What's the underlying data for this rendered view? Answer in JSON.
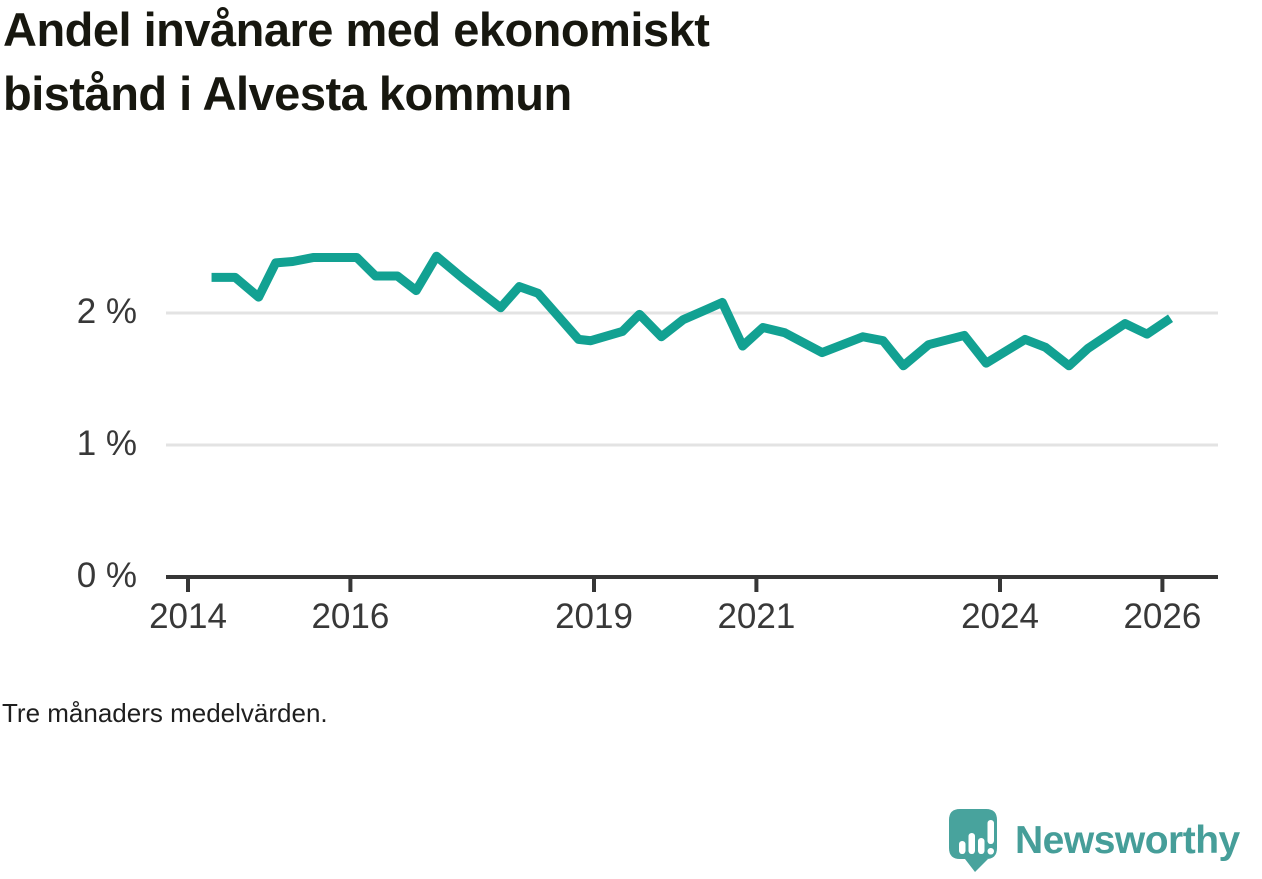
{
  "page": {
    "title_lines": [
      "Andel invånare med ekonomiskt",
      "bistånd i Alvesta kommun"
    ],
    "note": "Tre månaders medelvärden.",
    "logo_text": "Newsworthy"
  },
  "colors": {
    "line": "#12a192",
    "grid": "#e3e3e3",
    "axis": "#363636",
    "logo_bubble": "#48a39d",
    "logo_text": "#469e99"
  },
  "chart_data": {
    "type": "line",
    "title": "Andel invånare med ekonomiskt bistånd i Alvesta kommun",
    "note": "Tre månaders medelvärden.",
    "unit": "%",
    "xlabel": "",
    "ylabel": "",
    "x_range": [
      2013.73,
      2026.68
    ],
    "y_range": [
      0,
      2.6
    ],
    "grid": "horizontal",
    "legend": "none",
    "xticks": [
      {
        "value": 2014,
        "label": "2014"
      },
      {
        "value": 2016,
        "label": "2016"
      },
      {
        "value": 2019,
        "label": "2019"
      },
      {
        "value": 2021,
        "label": "2021"
      },
      {
        "value": 2024,
        "label": "2024"
      },
      {
        "value": 2026,
        "label": "2026"
      }
    ],
    "yticks": [
      {
        "value": 0,
        "label": "0 %"
      },
      {
        "value": 1,
        "label": "1 %"
      },
      {
        "value": 2,
        "label": "2 %"
      }
    ],
    "series": [
      {
        "name": "Andel invånare med ekonomiskt bistånd, Alvesta kommun",
        "points": [
          [
            2014.29,
            2.27
          ],
          [
            2014.58,
            2.27
          ],
          [
            2014.87,
            2.12
          ],
          [
            2015.08,
            2.38
          ],
          [
            2015.29,
            2.39
          ],
          [
            2015.54,
            2.42
          ],
          [
            2016.08,
            2.42
          ],
          [
            2016.31,
            2.28
          ],
          [
            2016.58,
            2.28
          ],
          [
            2016.81,
            2.17
          ],
          [
            2017.06,
            2.43
          ],
          [
            2017.39,
            2.26
          ],
          [
            2017.62,
            2.15
          ],
          [
            2017.85,
            2.04
          ],
          [
            2018.08,
            2.2
          ],
          [
            2018.31,
            2.15
          ],
          [
            2018.81,
            1.8
          ],
          [
            2018.96,
            1.79
          ],
          [
            2019.35,
            1.86
          ],
          [
            2019.56,
            1.99
          ],
          [
            2019.83,
            1.82
          ],
          [
            2020.1,
            1.95
          ],
          [
            2020.4,
            2.03
          ],
          [
            2020.58,
            2.08
          ],
          [
            2020.83,
            1.75
          ],
          [
            2021.08,
            1.89
          ],
          [
            2021.35,
            1.85
          ],
          [
            2021.81,
            1.7
          ],
          [
            2022.31,
            1.82
          ],
          [
            2022.56,
            1.79
          ],
          [
            2022.81,
            1.6
          ],
          [
            2023.12,
            1.76
          ],
          [
            2023.56,
            1.83
          ],
          [
            2023.83,
            1.62
          ],
          [
            2024.31,
            1.8
          ],
          [
            2024.56,
            1.74
          ],
          [
            2024.85,
            1.6
          ],
          [
            2025.08,
            1.73
          ],
          [
            2025.54,
            1.92
          ],
          [
            2025.81,
            1.84
          ],
          [
            2026.1,
            1.96
          ]
        ]
      }
    ]
  }
}
